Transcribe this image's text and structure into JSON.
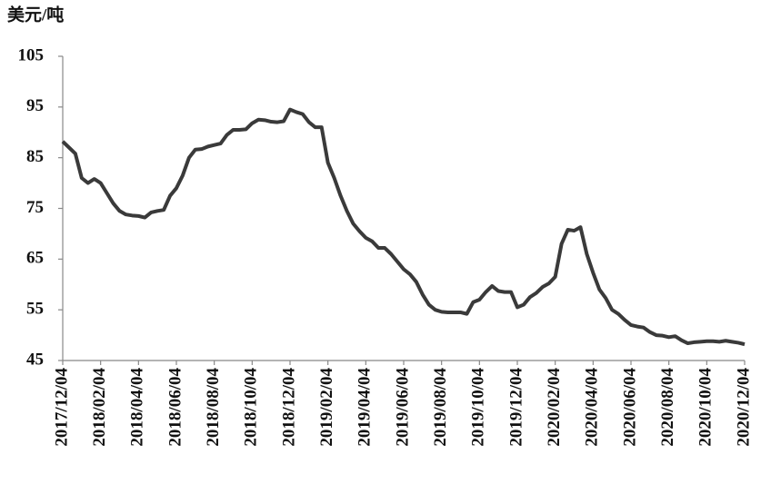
{
  "chart_data": {
    "type": "line",
    "y_label": "美元/吨",
    "categories": [
      "2017/12/04",
      null,
      null,
      null,
      null,
      null,
      "2018/02/04",
      null,
      null,
      null,
      null,
      null,
      "2018/04/04",
      null,
      null,
      null,
      null,
      null,
      "2018/06/04",
      null,
      null,
      null,
      null,
      null,
      "2018/08/04",
      null,
      null,
      null,
      null,
      null,
      "2018/10/04",
      null,
      null,
      null,
      null,
      null,
      "2018/12/04",
      null,
      null,
      null,
      null,
      null,
      "2019/02/04",
      null,
      null,
      null,
      null,
      null,
      "2019/04/04",
      null,
      null,
      null,
      null,
      null,
      "2019/06/04",
      null,
      null,
      null,
      null,
      null,
      "2019/08/04",
      null,
      null,
      null,
      null,
      null,
      "2019/10/04",
      null,
      null,
      null,
      null,
      null,
      "2019/12/04",
      null,
      null,
      null,
      null,
      null,
      "2020/02/04",
      null,
      null,
      null,
      null,
      null,
      "2020/04/04",
      null,
      null,
      null,
      null,
      null,
      "2020/06/04",
      null,
      null,
      null,
      null,
      null,
      "2020/08/04",
      null,
      null,
      null,
      null,
      null,
      "2020/10/04",
      null,
      null,
      null,
      null,
      null,
      "2020/12/04"
    ],
    "values": [
      88.2,
      87,
      85.8,
      81,
      80,
      80.8,
      80,
      78,
      76,
      74.5,
      73.8,
      73.6,
      73.5,
      73.2,
      74.2,
      74.5,
      74.7,
      77.5,
      79,
      81.5,
      85,
      86.6,
      86.7,
      87.2,
      87.5,
      87.8,
      89.5,
      90.5,
      90.5,
      90.6,
      91.8,
      92.5,
      92.4,
      92.1,
      92,
      92.2,
      94.5,
      94,
      93.6,
      92,
      91,
      91,
      84,
      81,
      77.5,
      74.5,
      72,
      70.5,
      69.2,
      68.5,
      67.2,
      67.2,
      66,
      64.5,
      63,
      62,
      60.5,
      58,
      56,
      55,
      54.6,
      54.5,
      54.5,
      54.5,
      54.2,
      56.5,
      57,
      58.5,
      59.7,
      58.7,
      58.5,
      58.5,
      55.5,
      56,
      57.5,
      58.3,
      59.5,
      60.2,
      61.5,
      68,
      70.8,
      70.6,
      71.3,
      66,
      62.3,
      59,
      57.3,
      55,
      54.2,
      53,
      52,
      51.7,
      51.5,
      50.6,
      50,
      49.9,
      49.6,
      49.8,
      49,
      48.4,
      48.6,
      48.7,
      48.8,
      48.8,
      48.7,
      48.9,
      48.7,
      48.5,
      48.2
    ],
    "color": "#3a3a3a",
    "ylim": [
      45,
      105
    ],
    "yticks": [
      45,
      55,
      65,
      75,
      85,
      95,
      105
    ],
    "grid": false
  }
}
